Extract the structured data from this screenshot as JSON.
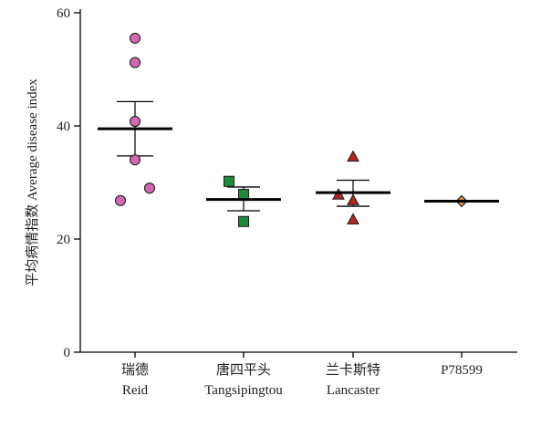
{
  "chart_data": {
    "type": "scatter",
    "ylabel": "平均病情指数 Average disease index",
    "ylim": [
      0,
      60
    ],
    "yticks": [
      0,
      20,
      40,
      60
    ],
    "grid": false,
    "categories": [
      {
        "cn": "瑞德",
        "en": "Reid"
      },
      {
        "cn": "唐四平头",
        "en": "Tangsipingtou"
      },
      {
        "cn": "兰卡斯特",
        "en": "Lancaster"
      },
      {
        "cn": "",
        "en": "P78599"
      }
    ],
    "series": [
      {
        "marker": "circle",
        "color": "#d466b2",
        "points": [
          55.5,
          51.2,
          40.8,
          34.0,
          29.0,
          26.8
        ],
        "jitter": [
          0,
          0,
          0,
          0,
          1,
          -1
        ],
        "mean": 39.5,
        "error_upper": 44.3,
        "error_lower": 34.7
      },
      {
        "marker": "square",
        "color": "#1f8a3c",
        "points": [
          30.2,
          27.9,
          23.1
        ],
        "jitter": [
          -1,
          0,
          0
        ],
        "mean": 27.0,
        "error_upper": 29.2,
        "error_lower": 25.0
      },
      {
        "marker": "triangle",
        "color": "#b5241e",
        "points": [
          34.5,
          27.8,
          26.8,
          23.4
        ],
        "jitter": [
          0,
          -1,
          0,
          0
        ],
        "mean": 28.2,
        "error_upper": 30.4,
        "error_lower": 25.8
      },
      {
        "marker": "diamond",
        "color": "#d98a3c",
        "points": [
          26.7
        ],
        "jitter": [
          0
        ],
        "mean": 26.7,
        "error_upper": 26.7,
        "error_lower": 26.7
      }
    ]
  }
}
